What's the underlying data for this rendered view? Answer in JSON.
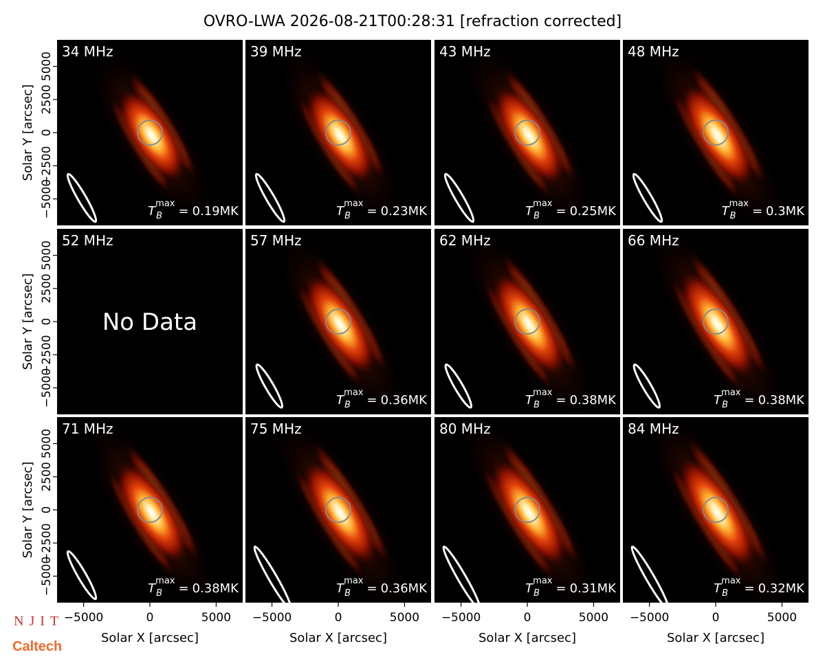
{
  "title": "OVRO-LWA 2026-08-21T00:28:31 [refraction corrected]",
  "axes": {
    "xlabel": "Solar X [arcsec]",
    "ylabel": "Solar Y [arcsec]",
    "xlim": [
      -7000,
      7000
    ],
    "ylim": [
      -7000,
      7000
    ],
    "xticks": [
      {
        "value": -5000,
        "label": "−5000"
      },
      0,
      5000
    ],
    "yticks": [
      {
        "value": -5000,
        "label": "−5000"
      },
      {
        "value": -2500,
        "label": "−2500"
      },
      0,
      2500,
      5000
    ]
  },
  "tb_symbol": {
    "base": "T",
    "sub": "B",
    "sup": "max",
    "eq": "="
  },
  "logos": [
    "NJIT",
    "Caltech"
  ],
  "chart_data": [
    {
      "type": "image",
      "title": "34 MHz",
      "values": [
        0.19
      ],
      "value_labels": [
        "0.19MK"
      ]
    },
    {
      "type": "image",
      "title": "39 MHz",
      "values": [
        0.23
      ],
      "value_labels": [
        "0.23MK"
      ]
    },
    {
      "type": "image",
      "title": "43 MHz",
      "values": [
        0.25
      ],
      "value_labels": [
        "0.25MK"
      ]
    },
    {
      "type": "image",
      "title": "48 MHz",
      "values": [
        0.3
      ],
      "value_labels": [
        "0.3MK"
      ]
    },
    {
      "type": "image",
      "title": "52 MHz",
      "annotation": "No Data"
    },
    {
      "type": "image",
      "title": "57 MHz",
      "values": [
        0.36
      ],
      "value_labels": [
        "0.36MK"
      ]
    },
    {
      "type": "image",
      "title": "62 MHz",
      "values": [
        0.38
      ],
      "value_labels": [
        "0.38MK"
      ]
    },
    {
      "type": "image",
      "title": "66 MHz",
      "values": [
        0.38
      ],
      "value_labels": [
        "0.38MK"
      ]
    },
    {
      "type": "image",
      "title": "71 MHz",
      "values": [
        0.38
      ],
      "value_labels": [
        "0.38MK"
      ]
    },
    {
      "type": "image",
      "title": "75 MHz",
      "values": [
        0.36
      ],
      "value_labels": [
        "0.36MK"
      ]
    },
    {
      "type": "image",
      "title": "80 MHz",
      "values": [
        0.31
      ],
      "value_labels": [
        "0.31MK"
      ]
    },
    {
      "type": "image",
      "title": "84 MHz",
      "values": [
        0.32
      ],
      "value_labels": [
        "0.32MK"
      ]
    }
  ]
}
